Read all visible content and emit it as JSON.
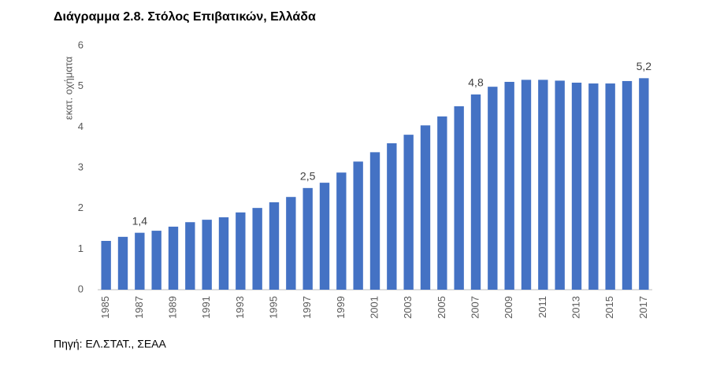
{
  "chart_data": {
    "type": "bar",
    "title": "Διάγραμμα 2.8. Στόλος Επιβατικών, Ελλάδα",
    "y_label": "εκατ. οχήματα",
    "source": "Πηγή: ΕΛ.ΣΤΑΤ., ΣΕΑΑ",
    "categories": [
      "1985",
      null,
      "1987",
      null,
      "1989",
      null,
      "1991",
      null,
      "1993",
      null,
      "1995",
      null,
      "1997",
      null,
      "1999",
      null,
      "2001",
      null,
      "2003",
      null,
      "2005",
      null,
      "2007",
      null,
      "2009",
      null,
      "2011",
      null,
      "2013",
      null,
      "2015",
      null,
      "2017"
    ],
    "values": [
      1.2,
      1.3,
      1.4,
      1.45,
      1.55,
      1.66,
      1.72,
      1.78,
      1.9,
      2.01,
      2.15,
      2.28,
      2.5,
      2.63,
      2.88,
      3.15,
      3.38,
      3.6,
      3.81,
      4.04,
      4.26,
      4.51,
      4.8,
      4.99,
      5.11,
      5.16,
      5.16,
      5.14,
      5.09,
      5.07,
      5.07,
      5.13,
      5.2
    ],
    "value_labels": [
      null,
      null,
      "1,4",
      null,
      null,
      null,
      null,
      null,
      null,
      null,
      null,
      null,
      "2,5",
      null,
      null,
      null,
      null,
      null,
      null,
      null,
      null,
      null,
      "4,8",
      null,
      null,
      null,
      null,
      null,
      null,
      null,
      null,
      null,
      "5,2"
    ],
    "color": "#4472c4",
    "ylim": [
      0,
      6
    ],
    "yticks": [
      0,
      1,
      2,
      3,
      4,
      5,
      6
    ],
    "grid": false
  }
}
